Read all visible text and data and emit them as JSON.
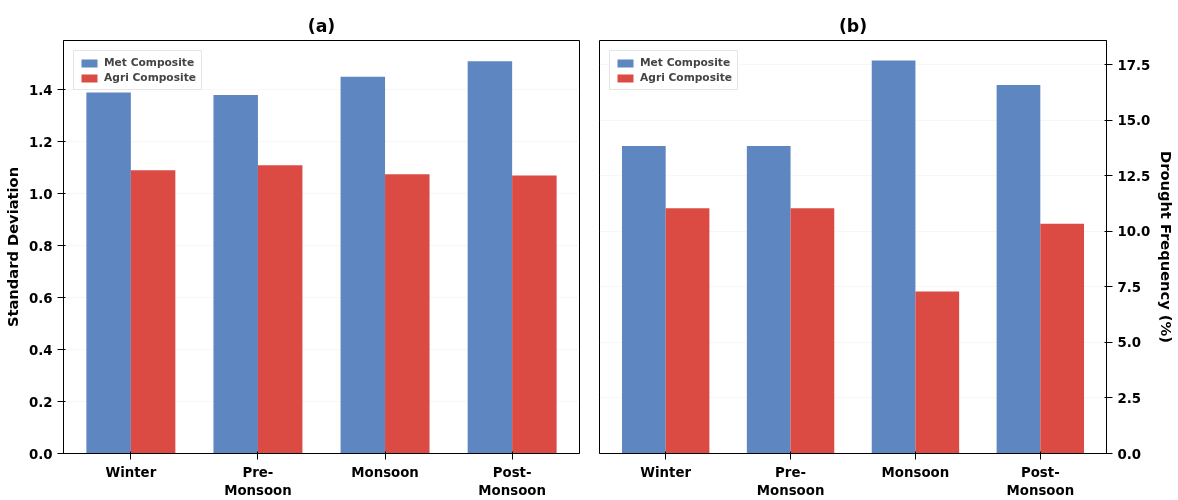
{
  "chart_data": [
    {
      "type": "bar",
      "title": "(a)",
      "ylabel": "Standard Deviation",
      "categories": [
        "Winter",
        "Pre-\nMonsoon",
        "Monsoon",
        "Post-\nMonsoon"
      ],
      "series": [
        {
          "name": "Met Composite",
          "color": "#5580be",
          "values": [
            1.39,
            1.38,
            1.45,
            1.51
          ]
        },
        {
          "name": "Agri Composite",
          "color": "#d9413a",
          "values": [
            1.09,
            1.11,
            1.075,
            1.07
          ]
        }
      ],
      "ylim": [
        0,
        1.59
      ],
      "yticks": [
        {
          "value": 0,
          "label": "0.0"
        },
        {
          "value": 0.2,
          "label": "0.2"
        },
        {
          "value": 0.4,
          "label": "0.4"
        },
        {
          "value": 0.6,
          "label": "0.6"
        },
        {
          "value": 0.8,
          "label": "0.8"
        },
        {
          "value": 1.0,
          "label": "1.0"
        },
        {
          "value": 1.2,
          "label": "1.2"
        },
        {
          "value": 1.4,
          "label": "1.4"
        }
      ],
      "grid": "y",
      "legend": "top left"
    },
    {
      "type": "bar",
      "title": "(b)",
      "y2label": "Drought Frequency (%)",
      "categories": [
        "Winter",
        "Pre-\nMonsoon",
        "Monsoon",
        "Post-\nMonsoon"
      ],
      "series": [
        {
          "name": "Met Composite",
          "color": "#5580be",
          "values": [
            13.85,
            13.85,
            17.7,
            16.6
          ],
          "axis": "y2"
        },
        {
          "name": "Agri Composite",
          "color": "#d9413a",
          "values": [
            11.05,
            11.05,
            7.3,
            10.35
          ],
          "axis": "y2"
        }
      ],
      "y2lim": [
        0,
        18.6
      ],
      "y2ticks": [
        {
          "value": 0,
          "label": "0.0"
        },
        {
          "value": 2.5,
          "label": "2.5"
        },
        {
          "value": 5,
          "label": "5.0"
        },
        {
          "value": 7.5,
          "label": "7.5"
        },
        {
          "value": 10,
          "label": "10.0"
        },
        {
          "value": 12.5,
          "label": "12.5"
        },
        {
          "value": 15,
          "label": "15.0"
        },
        {
          "value": 17.5,
          "label": "17.5"
        }
      ],
      "grid": "y",
      "legend": "top left"
    }
  ]
}
